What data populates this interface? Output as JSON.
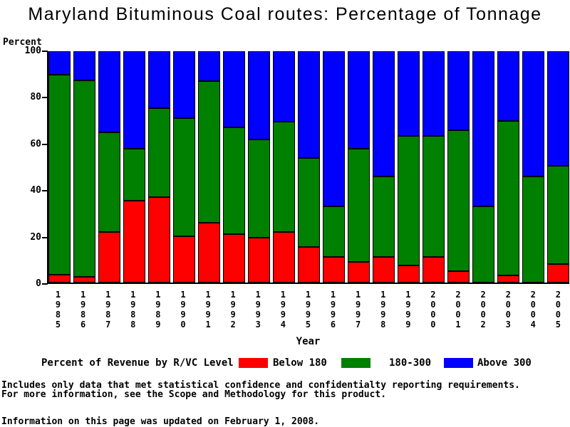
{
  "page": {
    "title": "Maryland Bituminous Coal routes: Percentage of Tonnage"
  },
  "chart_data": {
    "type": "bar",
    "stacked": true,
    "title": "Maryland Bituminous Coal routes: Percentage of Tonnage",
    "xlabel": "Year",
    "ylabel": "Percent",
    "ylim": [
      0,
      100
    ],
    "yticks": [
      0,
      20,
      40,
      60,
      80,
      100
    ],
    "grid": false,
    "legend_position": "bottom",
    "legend_title": "Percent of Revenue by R/VC Level",
    "categories": [
      "1985",
      "1986",
      "1987",
      "1988",
      "1989",
      "1990",
      "1991",
      "1992",
      "1993",
      "1994",
      "1995",
      "1996",
      "1997",
      "1998",
      "1999",
      "2000",
      "2001",
      "2002",
      "2003",
      "2004",
      "2005"
    ],
    "series": [
      {
        "name": "Below 180",
        "color": "#FF0000",
        "values": [
          3.5,
          2.5,
          22,
          35.5,
          37,
          20,
          26,
          21,
          19.5,
          22,
          15.5,
          11,
          9,
          11,
          7.5,
          11,
          5,
          0,
          3,
          0,
          8
        ]
      },
      {
        "name": "180-300",
        "color": "#008000",
        "values": [
          86.5,
          85,
          43,
          22.5,
          38.5,
          51,
          61,
          46,
          42.5,
          47.5,
          38.5,
          22,
          49,
          35,
          56,
          52.5,
          61,
          33,
          67,
          46,
          42.5
        ]
      },
      {
        "name": "Above 300",
        "color": "#0000FF",
        "values": [
          10,
          12.5,
          35,
          42,
          24.5,
          29,
          13,
          33,
          38,
          30.5,
          46,
          67,
          42,
          54,
          36.5,
          36.5,
          34,
          67,
          30,
          54,
          49.5
        ]
      }
    ]
  },
  "footnotes": {
    "line1": "Includes only data that met statistical confidence and confidentialty reporting requirements.",
    "line2": "For more information, see the Scope and Methodology for this product.",
    "update_note": "Information on this page was updated on February 1, 2008."
  }
}
